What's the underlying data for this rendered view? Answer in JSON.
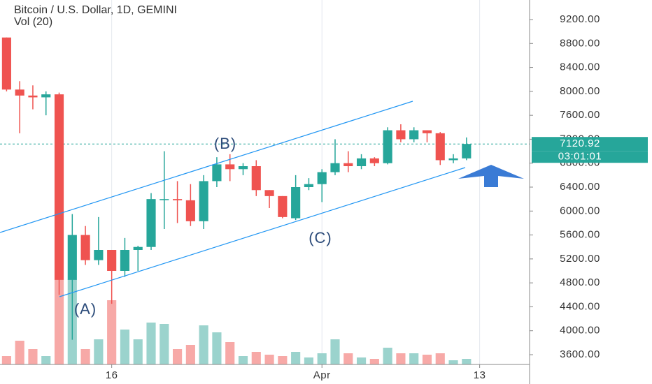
{
  "chart_data": {
    "type": "candlestick",
    "title": "Bitcoin / U.S. Dollar, 1D, GEMINI",
    "volume_title": "Vol (20)",
    "open": [
      8900,
      8030,
      7930,
      7900,
      7950,
      4850,
      5600,
      5180,
      5350,
      5000,
      5350,
      5400,
      6200,
      6200,
      6180,
      5830,
      6500,
      6780,
      6700,
      6750,
      6350,
      6250,
      5880,
      6400,
      6450,
      6650,
      6800,
      6750,
      6880,
      6800,
      7350,
      7200,
      7350,
      7300,
      6850,
      6880
    ],
    "high": [
      8900,
      8170,
      8100,
      8000,
      7980,
      5950,
      5750,
      5900,
      5350,
      5550,
      5420,
      6300,
      7000,
      6500,
      6450,
      6600,
      6900,
      6950,
      6800,
      6850,
      6350,
      6250,
      6600,
      6550,
      6700,
      7200,
      7000,
      6950,
      6900,
      7400,
      7450,
      7400,
      7350,
      7320,
      6950,
      7230
    ],
    "low": [
      8000,
      7300,
      7700,
      7600,
      4600,
      3850,
      5100,
      5100,
      4450,
      4900,
      5000,
      5350,
      5700,
      5800,
      5750,
      5700,
      6400,
      6500,
      6600,
      6250,
      6050,
      5880,
      5850,
      6350,
      6150,
      6600,
      6650,
      6700,
      6750,
      6780,
      7150,
      7150,
      7150,
      6770,
      6800,
      6850
    ],
    "close": [
      8030,
      7930,
      7900,
      7950,
      4850,
      5600,
      5180,
      5350,
      5000,
      5350,
      5400,
      6200,
      6200,
      6180,
      5830,
      6500,
      6780,
      6700,
      6750,
      6350,
      6250,
      5900,
      6400,
      6450,
      6650,
      6800,
      6750,
      6880,
      6800,
      7350,
      7200,
      7350,
      7300,
      6850,
      6880,
      7120.92
    ],
    "volume": [
      12,
      34,
      22,
      12,
      122,
      122,
      22,
      36,
      92,
      50,
      36,
      60,
      58,
      22,
      28,
      56,
      46,
      32,
      12,
      18,
      14,
      12,
      18,
      10,
      16,
      36,
      16,
      10,
      8,
      24,
      16,
      16,
      14,
      16,
      6,
      8
    ],
    "vol_ylim": [
      0,
      300
    ],
    "up_color": "#26a69a",
    "down_color": "#ef5350",
    "up_volume_color": "#9bd3cd",
    "down_volume_color": "#f7a9a7",
    "ylim": [
      3450,
      9450
    ],
    "yticks": [
      {
        "value": 3600,
        "label": "3600.00"
      },
      {
        "value": 4000,
        "label": "4000.00"
      },
      {
        "value": 4400,
        "label": "4400.00"
      },
      {
        "value": 4800,
        "label": "4800.00"
      },
      {
        "value": 5200,
        "label": "5200.00"
      },
      {
        "value": 5600,
        "label": "5600.00"
      },
      {
        "value": 6000,
        "label": "6000.00"
      },
      {
        "value": 6400,
        "label": "6400.00"
      },
      {
        "value": 6800,
        "label": "6800.00"
      },
      {
        "value": 7200,
        "label": "7200.00"
      },
      {
        "value": 7600,
        "label": "7600.00"
      },
      {
        "value": 8000,
        "label": "8000.00"
      },
      {
        "value": 8400,
        "label": "8400.00"
      },
      {
        "value": 8800,
        "label": "8800.00"
      },
      {
        "value": 9200,
        "label": "9200.00"
      }
    ],
    "xlim": [
      -0.5,
      39.8
    ],
    "xticks": [
      {
        "value": 8,
        "label": "16"
      },
      {
        "value": 24,
        "label": "Apr"
      },
      {
        "value": 36,
        "label": "13"
      }
    ],
    "countdown": "03:01:01",
    "annotations": [
      "(A)",
      "(B)",
      "(C)"
    ]
  }
}
